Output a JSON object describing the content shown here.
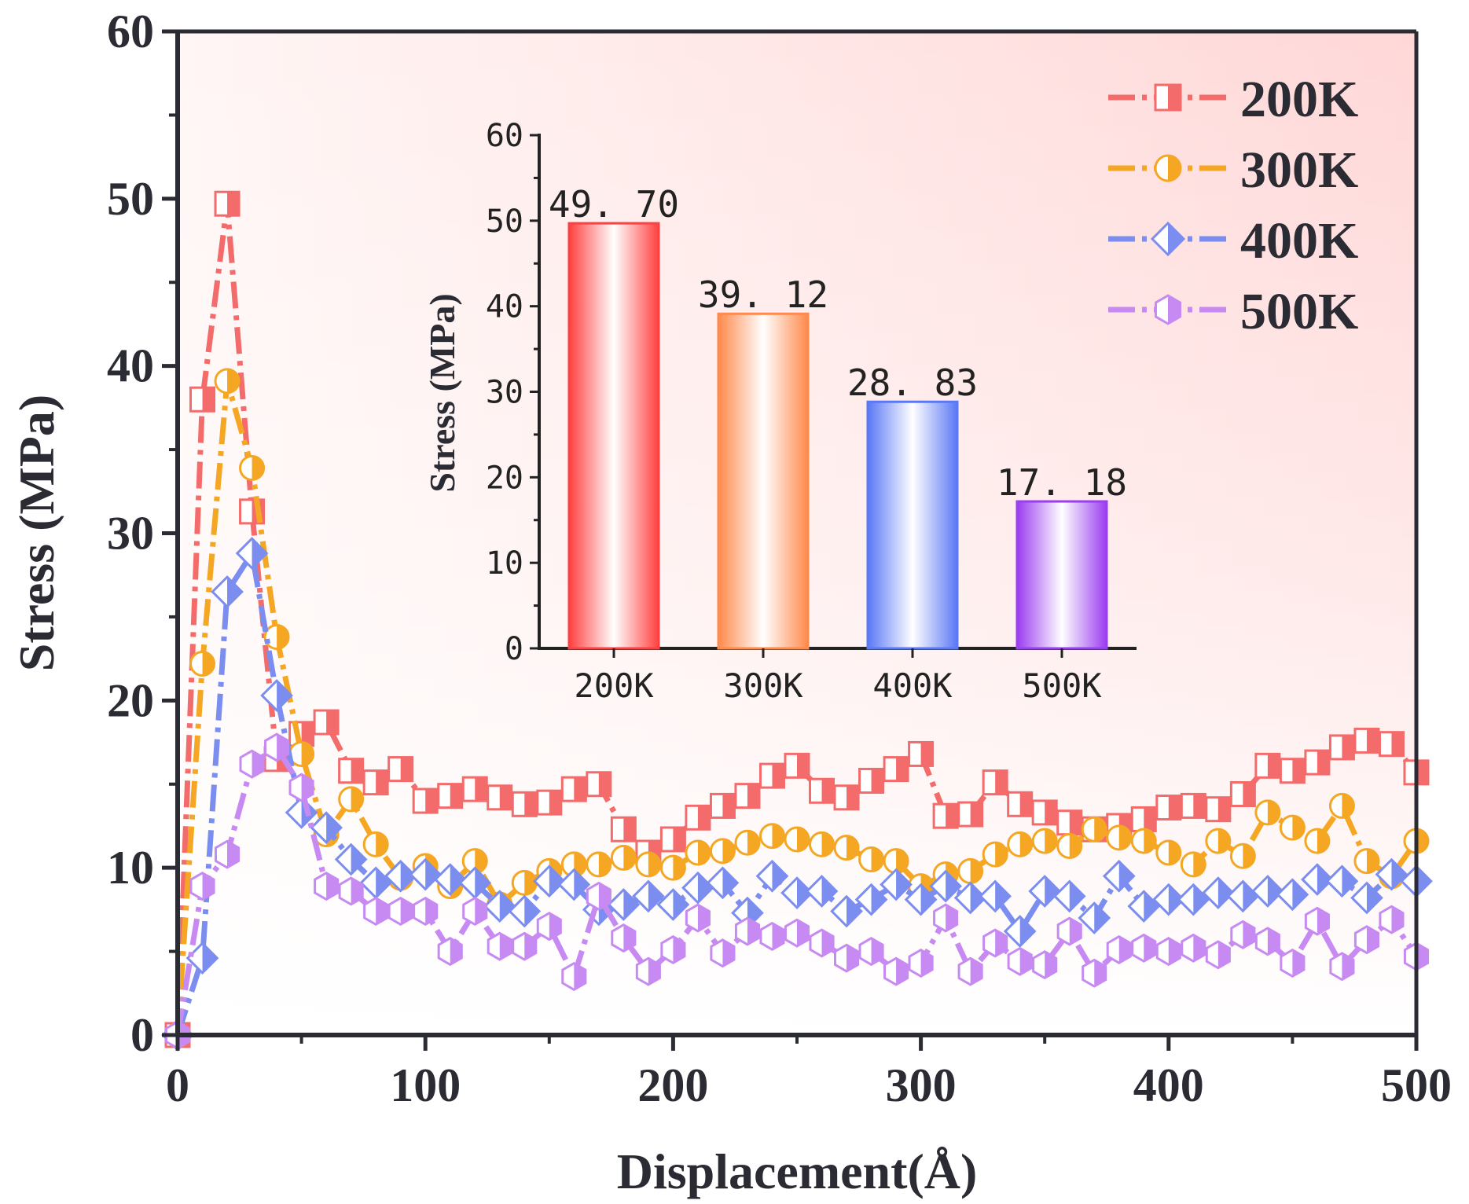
{
  "chart_data": [
    {
      "type": "line",
      "xlabel": "Displacement(Å)",
      "ylabel": "Stress (MPa)",
      "xlim": [
        0,
        500
      ],
      "ylim": [
        0,
        60
      ],
      "xticks": [
        "0",
        "100",
        "200",
        "300",
        "400",
        "500"
      ],
      "yticks": [
        "0",
        "10",
        "20",
        "30",
        "40",
        "50",
        "60"
      ],
      "legend_position": "top-right",
      "x": [
        0,
        10,
        20,
        30,
        40,
        50,
        60,
        70,
        80,
        90,
        100,
        110,
        120,
        130,
        140,
        150,
        160,
        170,
        180,
        190,
        200,
        210,
        220,
        230,
        240,
        250,
        260,
        270,
        280,
        290,
        300,
        310,
        320,
        330,
        340,
        350,
        360,
        370,
        380,
        390,
        400,
        410,
        420,
        430,
        440,
        450,
        460,
        470,
        480,
        490,
        500
      ],
      "series": [
        {
          "name": "200K",
          "color": "#f46b6b",
          "marker": "square",
          "values": [
            0,
            38.0,
            49.7,
            31.3,
            16.5,
            18.0,
            18.7,
            15.8,
            15.1,
            15.9,
            14.0,
            14.3,
            14.7,
            14.2,
            13.8,
            13.9,
            14.7,
            15.0,
            12.3,
            10.9,
            11.7,
            13.0,
            13.7,
            14.3,
            15.5,
            16.1,
            14.6,
            14.2,
            15.2,
            15.9,
            16.8,
            13.1,
            13.2,
            15.1,
            13.8,
            13.3,
            12.7,
            12.3,
            12.5,
            12.9,
            13.6,
            13.7,
            13.5,
            14.4,
            16.1,
            15.8,
            16.3,
            17.2,
            17.6,
            17.4,
            15.7
          ]
        },
        {
          "name": "300K",
          "color": "#f5a623",
          "marker": "circle",
          "values": [
            0,
            22.2,
            39.1,
            33.9,
            23.8,
            16.8,
            12.0,
            14.1,
            11.4,
            9.4,
            10.1,
            8.9,
            10.4,
            7.8,
            9.1,
            9.8,
            10.2,
            10.2,
            10.6,
            10.2,
            10.0,
            10.9,
            11.0,
            11.5,
            11.9,
            11.7,
            11.4,
            11.2,
            10.5,
            10.4,
            8.9,
            9.6,
            9.8,
            10.8,
            11.4,
            11.6,
            11.3,
            12.3,
            11.8,
            11.6,
            10.9,
            10.2,
            11.6,
            10.7,
            13.3,
            12.4,
            11.6,
            13.7,
            10.4,
            9.5,
            11.6
          ]
        },
        {
          "name": "400K",
          "color": "#7b8ef0",
          "marker": "diamond",
          "values": [
            0,
            4.6,
            26.5,
            28.8,
            20.3,
            13.3,
            12.4,
            10.5,
            9.1,
            9.5,
            9.6,
            9.3,
            9.1,
            7.7,
            7.4,
            9.2,
            9.0,
            7.5,
            7.8,
            8.3,
            7.8,
            8.8,
            9.1,
            7.3,
            9.5,
            8.5,
            8.6,
            7.4,
            8.1,
            9.0,
            8.1,
            8.9,
            8.2,
            8.3,
            6.2,
            8.6,
            8.3,
            7.0,
            9.5,
            7.7,
            8.1,
            8.1,
            8.5,
            8.3,
            8.6,
            8.4,
            9.3,
            9.2,
            8.2,
            9.6,
            9.2
          ]
        },
        {
          "name": "500K",
          "color": "#c78af2",
          "marker": "hexagon",
          "values": [
            0,
            8.9,
            10.8,
            16.2,
            17.2,
            14.8,
            8.9,
            8.6,
            7.4,
            7.4,
            7.4,
            5.0,
            7.4,
            5.3,
            5.3,
            6.5,
            3.5,
            8.3,
            5.8,
            3.8,
            5.1,
            7.0,
            4.9,
            6.2,
            5.9,
            6.1,
            5.5,
            4.6,
            5.0,
            3.8,
            4.3,
            7.0,
            3.8,
            5.5,
            4.4,
            4.2,
            6.2,
            3.7,
            5.1,
            5.2,
            5.0,
            5.2,
            4.8,
            6.0,
            5.6,
            4.3,
            6.8,
            4.1,
            5.7,
            6.9,
            4.7
          ]
        }
      ]
    },
    {
      "type": "bar",
      "categories": [
        "200K",
        "300K",
        "400K",
        "500K"
      ],
      "values": [
        49.7,
        39.12,
        28.83,
        17.18
      ],
      "labels": [
        "49. 70",
        "39. 12",
        "28. 83",
        "17. 18"
      ],
      "colors": [
        "#ff4040",
        "#ff8a4c",
        "#5b78f5",
        "#9b3df0"
      ],
      "ylabel": "Stress (MPa)",
      "ylim": [
        0,
        60
      ],
      "yticks": [
        "0",
        "10",
        "20",
        "30",
        "40",
        "50",
        "60"
      ]
    }
  ]
}
